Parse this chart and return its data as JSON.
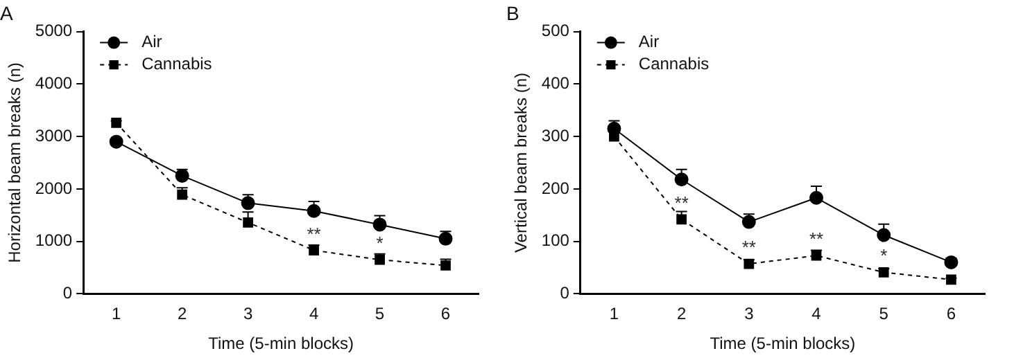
{
  "chart_data": [
    {
      "type": "line",
      "title": "A",
      "xlabel": "Time (5-min blocks)",
      "ylabel": "Horizontal beam breaks (n)",
      "categories": [
        "1",
        "2",
        "3",
        "4",
        "5",
        "6"
      ],
      "series": [
        {
          "name": "Air",
          "color": "#000000",
          "marker": "circle",
          "line_style": "solid",
          "values": [
            2900,
            2250,
            1730,
            1580,
            1320,
            1050
          ],
          "errors": [
            [
              2900,
              2950
            ],
            [
              2250,
              2370
            ],
            [
              1730,
              1890
            ],
            [
              1580,
              1760
            ],
            [
              1320,
              1490
            ],
            [
              1050,
              1190
            ]
          ]
        },
        {
          "name": "Cannabis",
          "color": "#000000",
          "marker": "square",
          "line_style": "dashed",
          "values": [
            3260,
            1890,
            1360,
            830,
            650,
            540
          ],
          "errors": [
            [
              3260,
              3300
            ],
            [
              1890,
              2020
            ],
            [
              1360,
              1560
            ],
            [
              830,
              930
            ],
            [
              650,
              760
            ],
            [
              540,
              660
            ]
          ]
        }
      ],
      "ylim": [
        0,
        5000
      ],
      "yticks": [
        0,
        1000,
        2000,
        3000,
        4000,
        5000
      ],
      "grid": false,
      "legend": "top left",
      "annotations": [
        {
          "text": "**",
          "x": "4",
          "y": 830
        },
        {
          "text": "*",
          "x": "5",
          "y": 650
        }
      ]
    },
    {
      "type": "line",
      "title": "B",
      "xlabel": "Time (5-min blocks)",
      "ylabel": "Vertical beam breaks (n)",
      "categories": [
        "1",
        "2",
        "3",
        "4",
        "5",
        "6"
      ],
      "series": [
        {
          "name": "Air",
          "color": "#000000",
          "marker": "circle",
          "line_style": "solid",
          "values": [
            315,
            218,
            137,
            183,
            112,
            60
          ],
          "errors": [
            [
              315,
              330
            ],
            [
              218,
              237
            ],
            [
              137,
              152
            ],
            [
              183,
              205
            ],
            [
              112,
              133
            ],
            [
              60,
              68
            ]
          ]
        },
        {
          "name": "Cannabis",
          "color": "#000000",
          "marker": "square",
          "line_style": "dashed",
          "values": [
            300,
            142,
            57,
            73,
            41,
            27
          ],
          "errors": [
            null,
            [
              142,
              157
            ],
            [
              57,
              65
            ],
            [
              73,
              83
            ],
            [
              41,
              48
            ],
            [
              27,
              30
            ]
          ]
        }
      ],
      "ylim": [
        0,
        500
      ],
      "yticks": [
        0,
        100,
        200,
        300,
        400,
        500
      ],
      "grid": false,
      "legend": "top left",
      "annotations": [
        {
          "text": "**",
          "x": "2",
          "y": 142
        },
        {
          "text": "**",
          "x": "3",
          "y": 57
        },
        {
          "text": "**",
          "x": "4",
          "y": 73
        },
        {
          "text": "*",
          "x": "5",
          "y": 41
        }
      ]
    }
  ]
}
